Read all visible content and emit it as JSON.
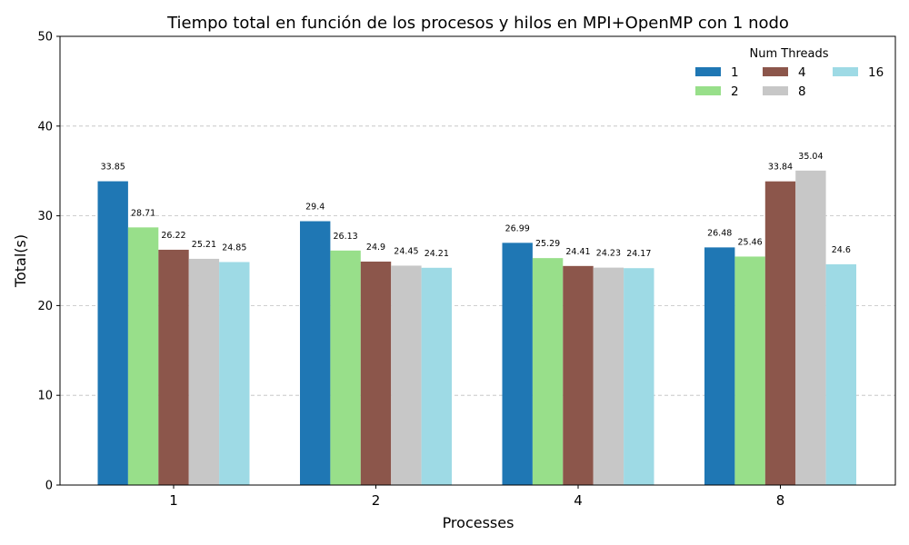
{
  "chart_data": {
    "type": "bar",
    "title": "Tiempo total en función de los procesos y hilos en MPI+OpenMP con 1 nodo",
    "xlabel": "Processes",
    "ylabel": "Total(s)",
    "categories": [
      "1",
      "2",
      "4",
      "8"
    ],
    "ylim": [
      0,
      50
    ],
    "yticks": [
      0,
      10,
      20,
      30,
      40,
      50
    ],
    "grid": "y-dashed",
    "legend": {
      "title": "Num Threads",
      "placement": "top-right",
      "columns": 3
    },
    "series": [
      {
        "name": "1",
        "color": "#1f77b4",
        "values": [
          33.85,
          29.4,
          26.99,
          26.48
        ]
      },
      {
        "name": "2",
        "color": "#98df8a",
        "values": [
          28.71,
          26.13,
          25.29,
          25.46
        ]
      },
      {
        "name": "4",
        "color": "#8c564b",
        "values": [
          26.22,
          24.9,
          24.41,
          33.84
        ]
      },
      {
        "name": "8",
        "color": "#c7c7c7",
        "values": [
          25.21,
          24.45,
          24.23,
          35.04
        ]
      },
      {
        "name": "16",
        "color": "#9edae5",
        "values": [
          24.85,
          24.21,
          24.17,
          24.6
        ]
      }
    ]
  }
}
